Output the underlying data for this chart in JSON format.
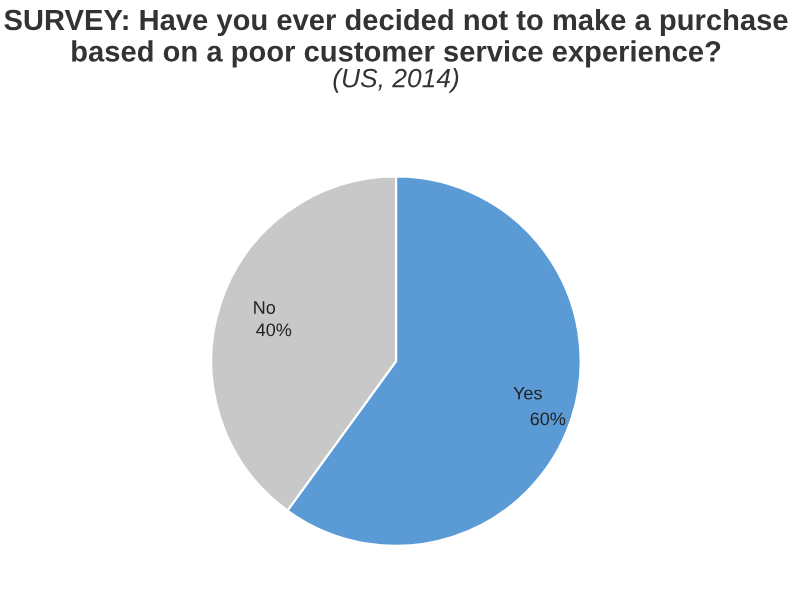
{
  "chart_data": {
    "type": "pie",
    "title": "SURVEY: Have you ever decided not to make a purchase based on a poor customer service experience?",
    "subtitle": "(US, 2014)",
    "categories": [
      "Yes",
      "No"
    ],
    "values": [
      60,
      40
    ],
    "colors": [
      "#5b9bd5",
      "#c8c8c8"
    ],
    "value_labels": [
      "60%",
      "40%"
    ]
  }
}
